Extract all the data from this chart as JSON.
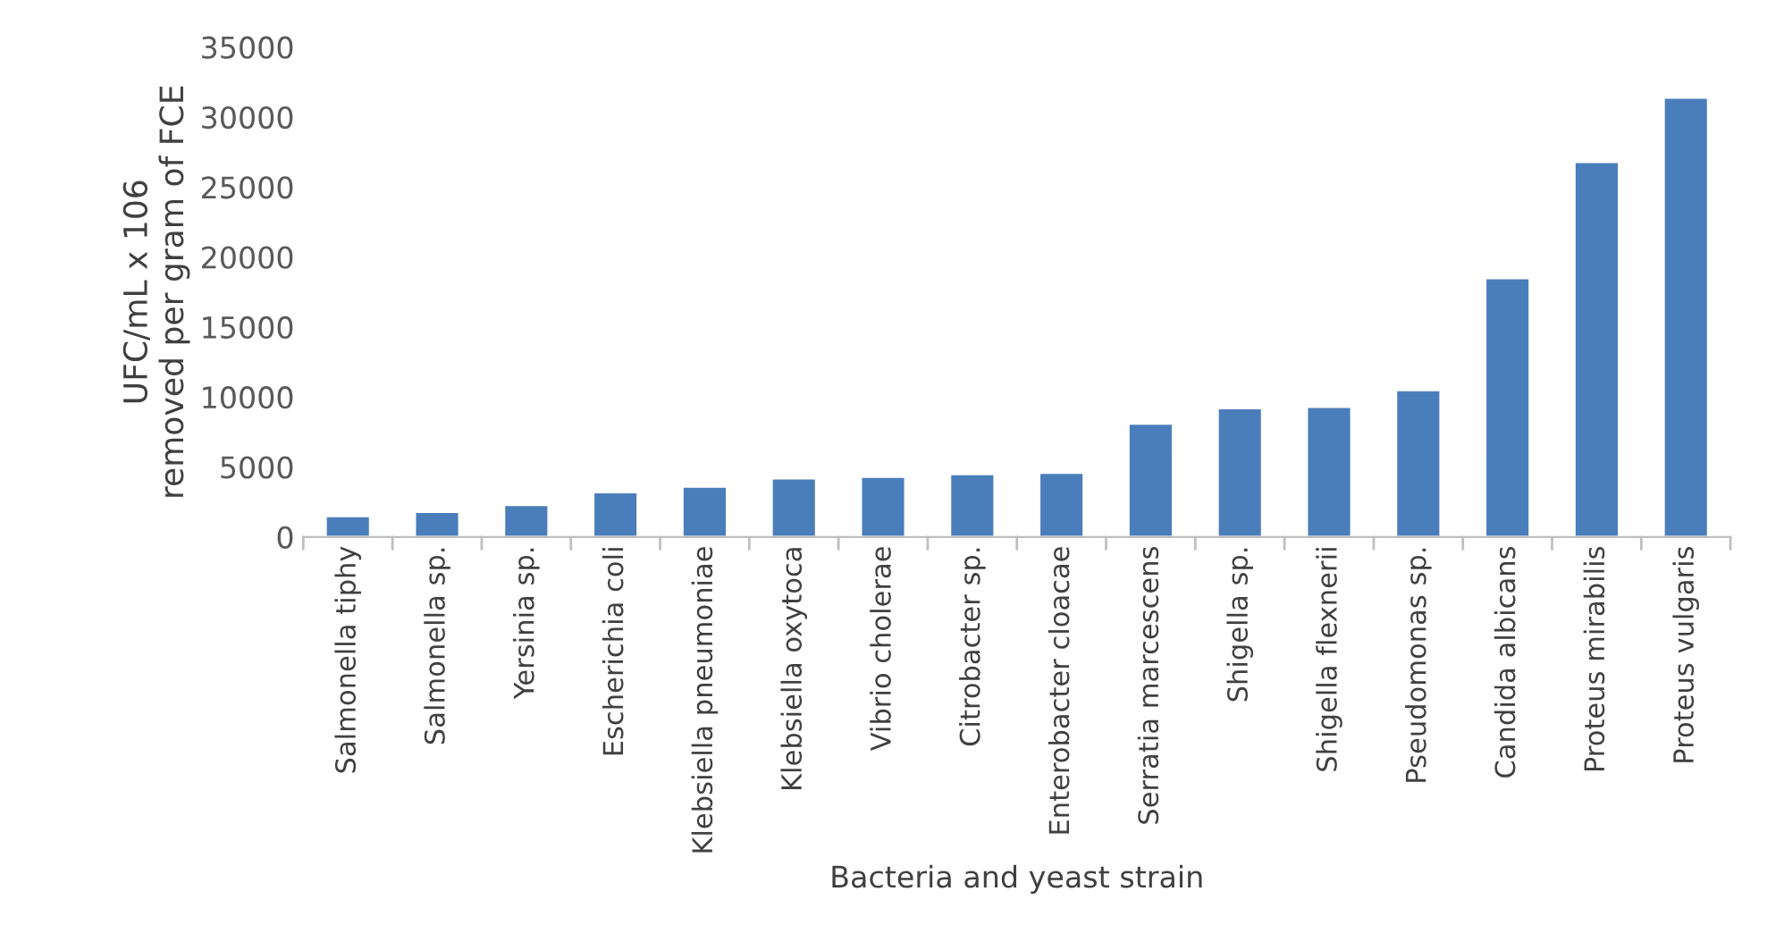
{
  "chart_data": {
    "type": "bar",
    "categories": [
      "Salmonella tiphy",
      "Salmonella sp.",
      "Yersinia sp.",
      "Escherichia coli",
      "Klebsiella pneumoniae",
      "Klebsiella oxytoca",
      "Vibrio cholerae",
      "Citrobacter sp.",
      "Enterobacter cloacae",
      "Serratia marcescens",
      "Shigella sp.",
      "Shigella flexnerii",
      "Pseudomonas sp.",
      "Candida albicans",
      "Proteus mirabilis",
      "Proteus vulgaris"
    ],
    "values": [
      1500,
      1800,
      2300,
      3200,
      3600,
      4200,
      4300,
      4500,
      4600,
      8100,
      9200,
      9300,
      10500,
      18500,
      26800,
      31400
    ],
    "color": "#4a7ebb",
    "xlabel": "Bacteria and yeast strain",
    "ylabel": "UFC/mL x 106\nremoved per gram of FCE",
    "ylim": [
      0,
      35000
    ],
    "yticks": [
      0,
      5000,
      10000,
      15000,
      20000,
      25000,
      30000,
      35000
    ],
    "grid": false
  }
}
